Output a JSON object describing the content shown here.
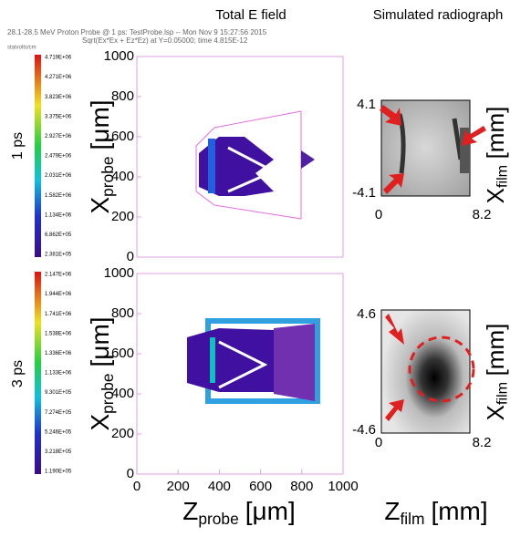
{
  "headers": {
    "field": "Total E field",
    "radiograph": "Simulated radiograph"
  },
  "rows": [
    {
      "label": "1 ps",
      "info": [
        "28.1-28.5 MeV Proton Probe @ 1 ps: TestProbe.lsp -- Mon Nov  9 15:27:56 2015",
        "Sqrt(Ex*Ex +  Ez*Ez) at Y=0.05000; time 4.815E-12"
      ],
      "unit": "statvolts/cm",
      "colorbar_ticks": [
        "4.719E+06",
        "4.271E+06",
        "3.823E+06",
        "3.375E+06",
        "2.927E+06",
        "2.479E+06",
        "2.031E+06",
        "1.582E+06",
        "1.134E+06",
        "6.862E+05",
        "2.381E+05"
      ],
      "radiograph_yticks": [
        "4.1",
        "-4.1"
      ]
    },
    {
      "label": "3 ps",
      "colorbar_ticks": [
        "2.147E+06",
        "1.944E+06",
        "1.741E+06",
        "1.538E+06",
        "1.336E+06",
        "1.133E+06",
        "9.301E+05",
        "7.274E+05",
        "5.246E+05",
        "3.218E+05",
        "1.190E+05"
      ],
      "radiograph_yticks": [
        "4.6",
        "-4.6"
      ]
    }
  ],
  "probe_yticks": [
    "0",
    "200",
    "400",
    "600",
    "800",
    "1000"
  ],
  "probe_xticks": [
    "0",
    "200",
    "400",
    "600",
    "800",
    "1000"
  ],
  "film_xticks": [
    "0",
    "8.2"
  ],
  "axes": {
    "probe_y": {
      "symbol": "X",
      "sub": "probe",
      "unit": "[μm]"
    },
    "probe_x": {
      "symbol": "Z",
      "sub": "probe",
      "unit": "[μm]"
    },
    "film_x": {
      "symbol": "Z",
      "sub": "film",
      "unit": "[mm]"
    },
    "film_y": {
      "symbol": "X",
      "sub": "film",
      "unit": "[mm]"
    }
  }
}
